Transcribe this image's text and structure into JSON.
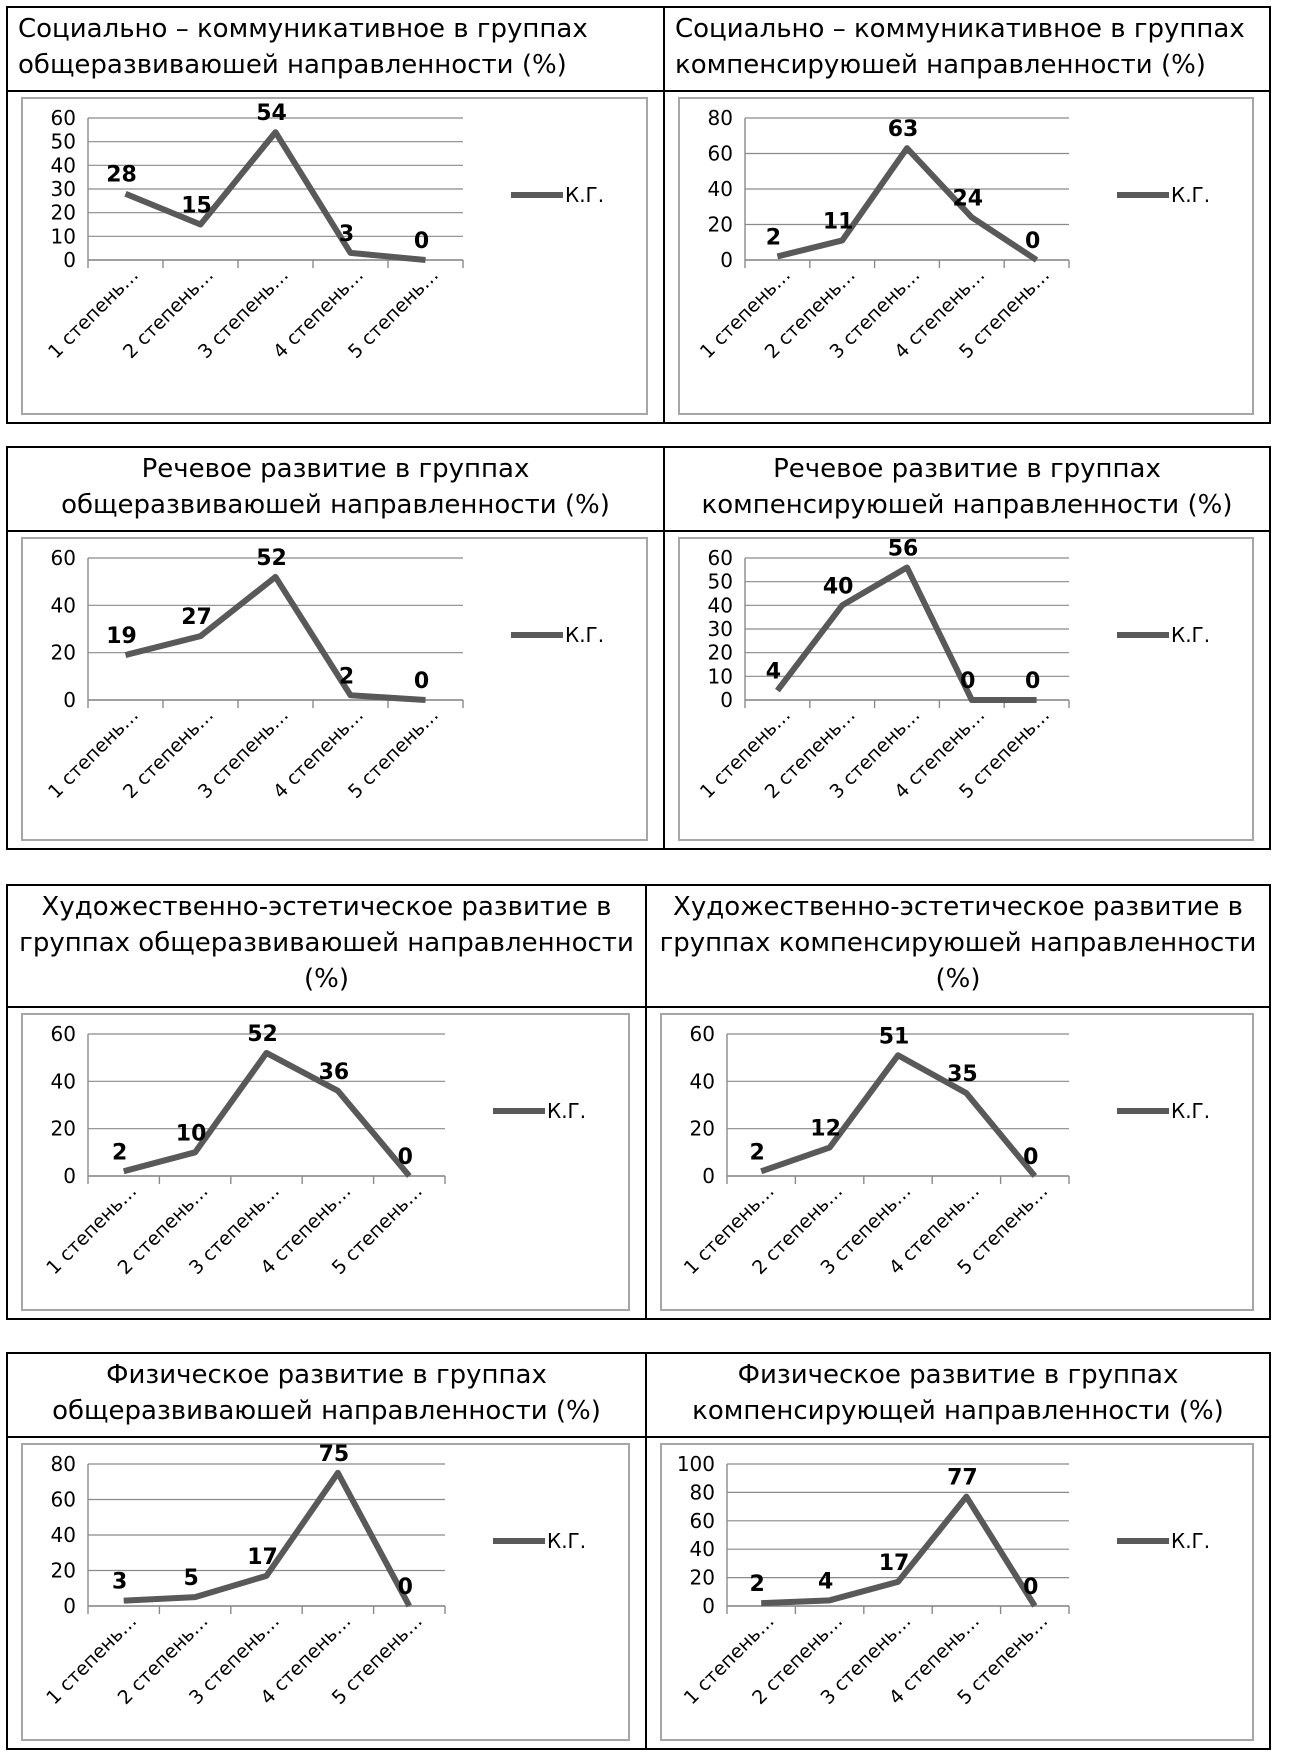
{
  "legend_label": "К.Г.",
  "series_color": "#595959",
  "gray_background": "#f2f2f2",
  "chart_data": [
    {
      "type": "line",
      "title": "Социально – коммуникативное в группах общеразвиваюшей направленности (%)",
      "categories": [
        "1 степень…",
        "2 степень…",
        "3 степень…",
        "4 степень…",
        "5 степень…"
      ],
      "series": [
        {
          "name": "К.Г.",
          "values": [
            28,
            15,
            54,
            3,
            0
          ]
        }
      ],
      "yticks": [
        0,
        10,
        20,
        30,
        40,
        50,
        60
      ],
      "ylim": [
        0,
        60
      ],
      "grid": true,
      "legend": "right"
    },
    {
      "type": "line",
      "title": "Социально – коммуникативное в группах компенсируюшей направленности (%)",
      "categories": [
        "1 степень…",
        "2 степень…",
        "3 степень…",
        "4 степень…",
        "5 степень…"
      ],
      "series": [
        {
          "name": "К.Г.",
          "values": [
            2,
            11,
            63,
            24,
            0
          ]
        }
      ],
      "yticks": [
        0,
        20,
        40,
        60,
        80
      ],
      "ylim": [
        0,
        80
      ],
      "grid": true,
      "legend": "right"
    },
    {
      "type": "line",
      "title": "Речевое развитие в группах общеразвиваюшей направленности (%)",
      "categories": [
        "1 степень…",
        "2 степень…",
        "3 степень…",
        "4 степень…",
        "5 степень…"
      ],
      "series": [
        {
          "name": "К.Г.",
          "values": [
            19,
            27,
            52,
            2,
            0
          ]
        }
      ],
      "yticks": [
        0,
        20,
        40,
        60
      ],
      "ylim": [
        0,
        60
      ],
      "grid": true,
      "legend": "right"
    },
    {
      "type": "line",
      "title": "Речевое развитие в группах компенсируюшей направленности (%)",
      "categories": [
        "1 степень…",
        "2 степень…",
        "3 степень…",
        "4 степень…",
        "5 степень…"
      ],
      "series": [
        {
          "name": "К.Г.",
          "values": [
            4,
            40,
            56,
            0,
            0
          ]
        }
      ],
      "yticks": [
        0,
        10,
        20,
        30,
        40,
        50,
        60
      ],
      "ylim": [
        0,
        60
      ],
      "grid": true,
      "legend": "right"
    },
    {
      "type": "line",
      "title": "Художественно-эстетическое развитие в группах общеразвиваюшей направленности (%)",
      "categories": [
        "1 степень…",
        "2 степень…",
        "3 степень…",
        "4 степень…",
        "5 степень…"
      ],
      "series": [
        {
          "name": "К.Г.",
          "values": [
            2,
            10,
            52,
            36,
            0
          ]
        }
      ],
      "yticks": [
        0,
        20,
        40,
        60
      ],
      "ylim": [
        0,
        60
      ],
      "grid": true,
      "legend": "right"
    },
    {
      "type": "line",
      "title": "Художественно-эстетическое развитие в группах компенсируюшей направленности (%)",
      "categories": [
        "1 степень…",
        "2 степень…",
        "3 степень…",
        "4 степень…",
        "5 степень…"
      ],
      "series": [
        {
          "name": "К.Г.",
          "values": [
            2,
            12,
            51,
            35,
            0
          ]
        }
      ],
      "yticks": [
        0,
        20,
        40,
        60
      ],
      "ylim": [
        0,
        60
      ],
      "grid": true,
      "legend": "right"
    },
    {
      "type": "line",
      "title": "Физическое развитие в группах общеразвиваюшей направленности (%)",
      "categories": [
        "1 степень…",
        "2 степень…",
        "3 степень…",
        "4 степень…",
        "5 степень…"
      ],
      "series": [
        {
          "name": "К.Г.",
          "values": [
            3,
            5,
            17,
            75,
            0
          ]
        }
      ],
      "yticks": [
        0,
        20,
        40,
        60,
        80
      ],
      "ylim": [
        0,
        80
      ],
      "grid": true,
      "legend": "right"
    },
    {
      "type": "line",
      "title": "Физическое развитие в группах компенсирующей направленности (%)",
      "categories": [
        "1 степень…",
        "2 степень…",
        "3 степень…",
        "4 степень…",
        "5 степень…"
      ],
      "series": [
        {
          "name": "К.Г.",
          "values": [
            2,
            4,
            17,
            77,
            0
          ]
        }
      ],
      "yticks": [
        0,
        20,
        40,
        60,
        80,
        100
      ],
      "ylim": [
        0,
        100
      ],
      "grid": true,
      "legend": "right"
    }
  ]
}
